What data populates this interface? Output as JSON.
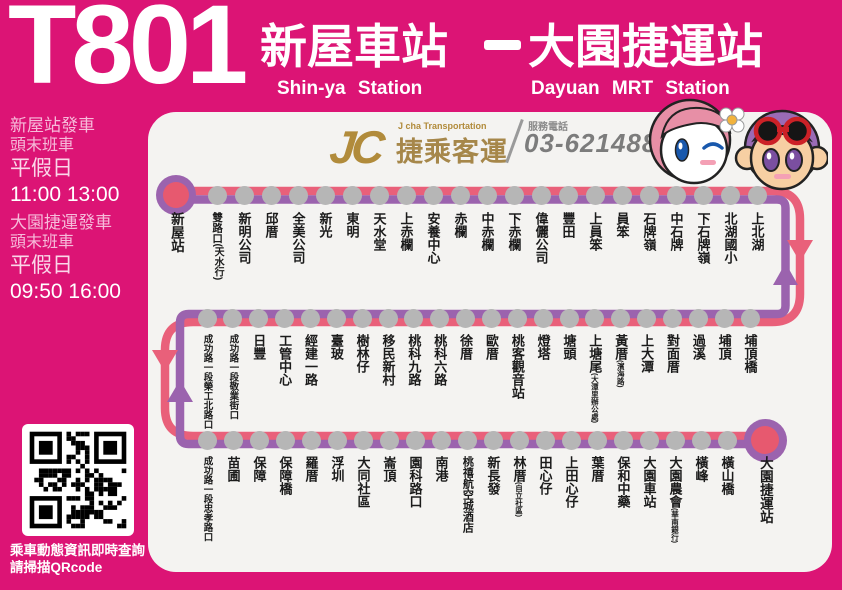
{
  "route": {
    "number": "T801",
    "from_zh": "新屋車站",
    "to_zh": "大園捷運站",
    "from_en": "Shin-ya Station",
    "to_en": "Dayuan MRT Station"
  },
  "schedule": [
    {
      "title": "新屋站發車",
      "subtitle": "頭末班車",
      "day_type": "平假日",
      "times": "11:00 13:00"
    },
    {
      "title": "大園捷運發車",
      "subtitle": "頭末班車",
      "day_type": "平假日",
      "times": "09:50 16:00"
    }
  ],
  "operator": {
    "logo_initials": "JC",
    "logo_sub": "J cha Transportation",
    "name_zh": "捷乘客運",
    "phone_label": "服務電話",
    "phone": "03-6214885"
  },
  "qr": {
    "caption_line1": "乘車動態資訊即時查詢",
    "caption_line2": "請掃描QRcode"
  },
  "colors": {
    "background": "#DC1475",
    "card": "#F4F3F1",
    "line_outbound_pink": "#E9607A",
    "line_return_purple": "#9B63AE",
    "stop_dot_gray": "#B6B6B6",
    "terminal_ring_purple": "#9B63AE",
    "terminal_center_pink": "#E7596F",
    "logo_gold": "#A6874A"
  },
  "route_map": {
    "direction_pink": "新屋站 → 大園捷運站",
    "direction_purple": "大園捷運站 → 新屋站",
    "rows": [
      {
        "display_order": "left-to-right",
        "route_order": "outbound left-to-right",
        "stations": [
          {
            "name": "新屋站",
            "sub": "",
            "terminal": true
          },
          {
            "name": "雙路口",
            "sub": "天水行",
            "small_sub": false
          },
          {
            "name": "新明公司",
            "sub": ""
          },
          {
            "name": "邱厝",
            "sub": ""
          },
          {
            "name": "全美公司",
            "sub": ""
          },
          {
            "name": "新光",
            "sub": ""
          },
          {
            "name": "東明",
            "sub": ""
          },
          {
            "name": "天水堂",
            "sub": ""
          },
          {
            "name": "上赤欄",
            "sub": ""
          },
          {
            "name": "安養中心",
            "sub": ""
          },
          {
            "name": "赤欄",
            "sub": ""
          },
          {
            "name": "中赤欄",
            "sub": ""
          },
          {
            "name": "下赤欄",
            "sub": ""
          },
          {
            "name": "偉儷公司",
            "sub": ""
          },
          {
            "name": "豐田",
            "sub": ""
          },
          {
            "name": "上員笨",
            "sub": ""
          },
          {
            "name": "員笨",
            "sub": ""
          },
          {
            "name": "石牌嶺",
            "sub": ""
          },
          {
            "name": "中石牌",
            "sub": ""
          },
          {
            "name": "下石牌嶺",
            "sub": ""
          },
          {
            "name": "北湖國小",
            "sub": ""
          },
          {
            "name": "上北湖",
            "sub": ""
          }
        ]
      },
      {
        "display_order": "left-to-right",
        "route_order": "outbound right-to-left",
        "stations": [
          {
            "name": "成功路一段榮工北路口",
            "sub": ""
          },
          {
            "name": "成功路一段敬業街口",
            "sub": ""
          },
          {
            "name": "日豐",
            "sub": ""
          },
          {
            "name": "工管中心",
            "sub": ""
          },
          {
            "name": "經建一路",
            "sub": ""
          },
          {
            "name": "臺玻",
            "sub": ""
          },
          {
            "name": "樹林仔",
            "sub": ""
          },
          {
            "name": "移民新村",
            "sub": ""
          },
          {
            "name": "桃科九路",
            "sub": ""
          },
          {
            "name": "桃科六路",
            "sub": ""
          },
          {
            "name": "徐厝",
            "sub": ""
          },
          {
            "name": "歐厝",
            "sub": ""
          },
          {
            "name": "桃客觀音站",
            "sub": ""
          },
          {
            "name": "燈塔",
            "sub": ""
          },
          {
            "name": "塘頭",
            "sub": ""
          },
          {
            "name": "上塘尾",
            "sub": "大潭里辦公處",
            "small_sub": true
          },
          {
            "name": "黃厝",
            "sub": "濱海路",
            "small_sub": true
          },
          {
            "name": "上大潭",
            "sub": ""
          },
          {
            "name": "對面厝",
            "sub": ""
          },
          {
            "name": "過溪",
            "sub": ""
          },
          {
            "name": "埔頂",
            "sub": ""
          },
          {
            "name": "埔頂橋",
            "sub": ""
          }
        ]
      },
      {
        "display_order": "left-to-right",
        "route_order": "outbound left-to-right",
        "stations": [
          {
            "name": "成功路一段忠孝路口",
            "sub": ""
          },
          {
            "name": "苗圃",
            "sub": ""
          },
          {
            "name": "保障",
            "sub": ""
          },
          {
            "name": "保障橋",
            "sub": ""
          },
          {
            "name": "羅厝",
            "sub": ""
          },
          {
            "name": "浮圳",
            "sub": ""
          },
          {
            "name": "大同社區",
            "sub": ""
          },
          {
            "name": "崙頂",
            "sub": ""
          },
          {
            "name": "園科路口",
            "sub": ""
          },
          {
            "name": "南港",
            "sub": ""
          },
          {
            "name": "桃禧航空城酒店",
            "sub": ""
          },
          {
            "name": "新長發",
            "sub": ""
          },
          {
            "name": "林厝",
            "sub": "自立社區",
            "small_sub": true
          },
          {
            "name": "田心仔",
            "sub": ""
          },
          {
            "name": "上田心仔",
            "sub": ""
          },
          {
            "name": "葉厝",
            "sub": ""
          },
          {
            "name": "保和中藥",
            "sub": ""
          },
          {
            "name": "大園車站",
            "sub": ""
          },
          {
            "name": "大園農會",
            "sub": "華南銀行",
            "small_sub": true
          },
          {
            "name": "橫峰",
            "sub": ""
          },
          {
            "name": "橫山橋",
            "sub": ""
          },
          {
            "name": "大園捷運站",
            "sub": "",
            "terminal": true
          }
        ]
      }
    ]
  }
}
